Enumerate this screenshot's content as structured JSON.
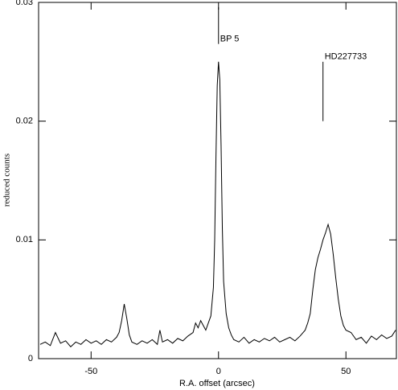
{
  "chart_data": {
    "type": "line",
    "xlabel": "R.A. offset (arcsec)",
    "ylabel": "reduced counts",
    "xlim": [
      -70.6,
      69.8
    ],
    "ylim": [
      0,
      0.03
    ],
    "xticks": [
      -50,
      0,
      50
    ],
    "yticks": [
      0,
      0.01,
      0.02,
      0.03
    ],
    "series": [
      {
        "color": "#000000",
        "x": [
          -70,
          -68,
          -66,
          -64,
          -62,
          -60,
          -58,
          -56,
          -54,
          -52,
          -50,
          -48,
          -46,
          -44,
          -42,
          -40,
          -39,
          -38,
          -37,
          -36,
          -35,
          -34,
          -32,
          -30,
          -28,
          -26,
          -24,
          -23,
          -22,
          -20,
          -18,
          -16,
          -14,
          -12,
          -10,
          -9,
          -8,
          -7,
          -6,
          -5,
          -4,
          -3,
          -2,
          -1.5,
          -1,
          -0.5,
          0,
          0.5,
          1,
          1.5,
          2,
          3,
          4,
          5,
          6,
          8,
          10,
          12,
          14,
          16,
          18,
          20,
          22,
          24,
          26,
          28,
          30,
          32,
          34,
          35,
          36,
          37,
          38,
          39,
          40,
          41,
          42,
          43,
          44,
          45,
          46,
          47,
          48,
          49,
          50,
          52,
          54,
          56,
          58,
          60,
          62,
          64,
          66,
          68,
          69.5
        ],
        "values": [
          0.0012,
          0.0014,
          0.0011,
          0.0022,
          0.0013,
          0.0015,
          0.001,
          0.0014,
          0.0012,
          0.0016,
          0.0013,
          0.0015,
          0.0012,
          0.0016,
          0.0014,
          0.0018,
          0.0022,
          0.0032,
          0.0046,
          0.0034,
          0.002,
          0.0014,
          0.0012,
          0.0015,
          0.0013,
          0.0016,
          0.0012,
          0.0024,
          0.0014,
          0.0016,
          0.0013,
          0.0017,
          0.0015,
          0.0019,
          0.0022,
          0.003,
          0.0026,
          0.0032,
          0.0028,
          0.0024,
          0.003,
          0.0036,
          0.006,
          0.01,
          0.017,
          0.023,
          0.025,
          0.0235,
          0.018,
          0.011,
          0.0065,
          0.0038,
          0.0026,
          0.002,
          0.0016,
          0.0014,
          0.0018,
          0.0013,
          0.0016,
          0.0014,
          0.0017,
          0.0015,
          0.0018,
          0.0014,
          0.0016,
          0.0018,
          0.0015,
          0.0019,
          0.0024,
          0.003,
          0.0038,
          0.0058,
          0.0075,
          0.0085,
          0.0092,
          0.01,
          0.0106,
          0.0113,
          0.0105,
          0.0088,
          0.0068,
          0.005,
          0.0036,
          0.0028,
          0.0024,
          0.0022,
          0.0016,
          0.0018,
          0.0013,
          0.0019,
          0.0016,
          0.002,
          0.0017,
          0.0019,
          0.0024
        ]
      }
    ],
    "annotations": [
      {
        "text": "BP 5",
        "x": 0,
        "y": [
          0.0265,
          0.0296
        ]
      },
      {
        "text": "HD227733",
        "x": 41,
        "y": [
          0.02,
          0.025
        ]
      }
    ]
  }
}
